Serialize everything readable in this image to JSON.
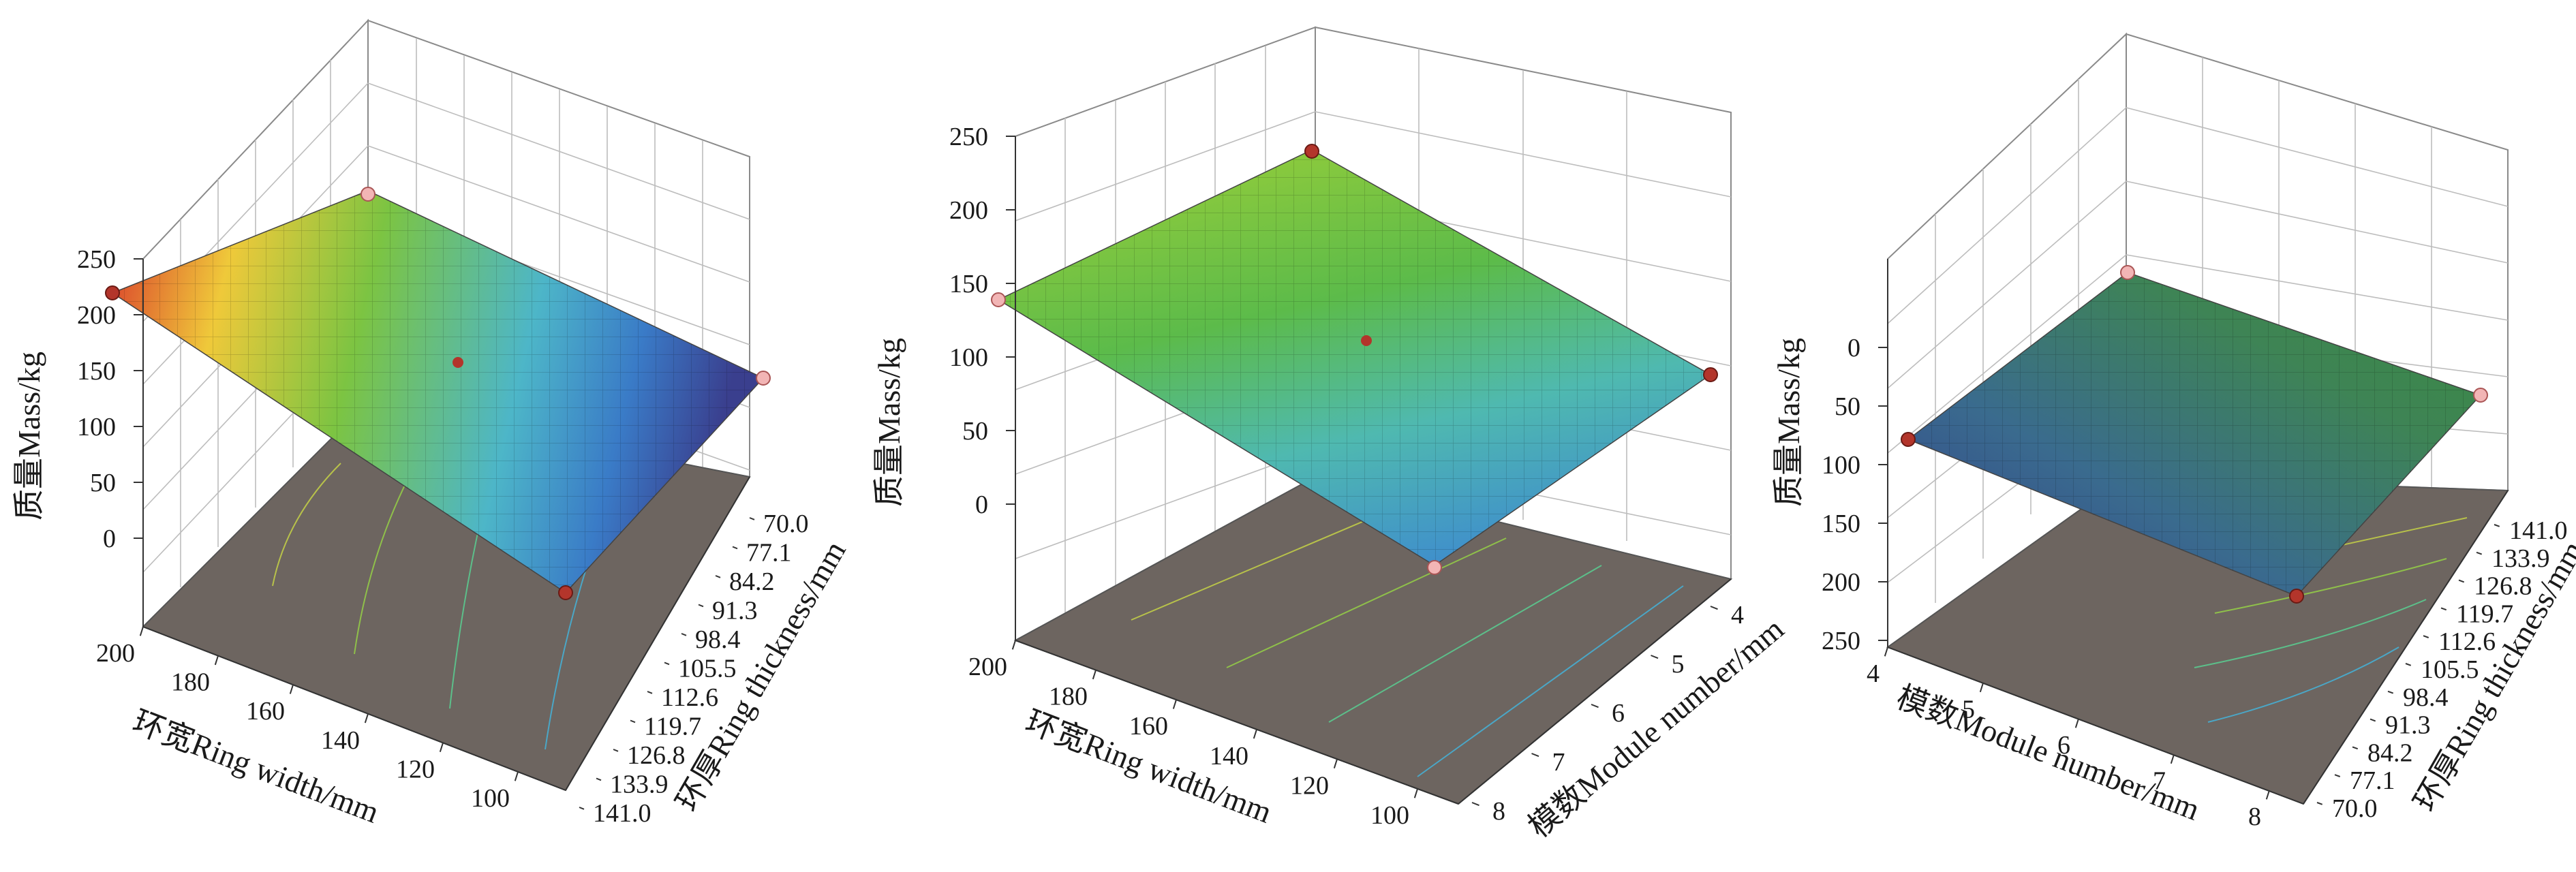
{
  "chart_data": [
    {
      "type": "surface",
      "title": "",
      "zlabel": "质量Mass/kg",
      "xlabel": "环宽Ring width/mm",
      "ylabel": "环厚Ring thickness/mm",
      "zticks": [
        "250",
        "200",
        "150",
        "100",
        "50",
        "0"
      ],
      "xticks": [
        "200",
        "180",
        "160",
        "140",
        "120",
        "100"
      ],
      "yticks": [
        "70.0",
        "77.1",
        "84.2",
        "91.3",
        "98.4",
        "105.5",
        "112.6",
        "119.7",
        "126.8",
        "133.9",
        "141.0"
      ],
      "corner_values": {
        "x200_y70.0": 195,
        "x100_y70.0": 100,
        "x200_y141.0": 150,
        "x100_y141.0": 60
      },
      "zlim": [
        0,
        250
      ]
    },
    {
      "type": "surface",
      "title": "",
      "zlabel": "质量Mass/kg",
      "xlabel": "环宽Ring width/mm",
      "ylabel": "模数Module number/mm",
      "zticks": [
        "250",
        "200",
        "150",
        "100",
        "50",
        "0"
      ],
      "xticks": [
        "200",
        "180",
        "160",
        "140",
        "120",
        "100"
      ],
      "yticks": [
        "4",
        "5",
        "6",
        "7",
        "8"
      ],
      "corner_values": {
        "x200_y4": 205,
        "x100_y4": 85,
        "x200_y8": 140,
        "x100_y8": 50
      },
      "zlim": [
        0,
        250
      ]
    },
    {
      "type": "surface",
      "title": "",
      "zlabel": "质量Mass/kg",
      "xlabel": "模数Module number/mm",
      "ylabel": "环厚Ring thickness/mm",
      "zticks": [
        "0",
        "50",
        "100",
        "150",
        "200",
        "250"
      ],
      "xticks": [
        "4",
        "5",
        "6",
        "7",
        "8"
      ],
      "yticks": [
        "141.0",
        "133.9",
        "126.8",
        "119.7",
        "112.6",
        "105.5",
        "98.4",
        "91.3",
        "84.2",
        "77.1",
        "70.0"
      ],
      "corner_values": {
        "x4_y141.0": 95,
        "x8_y141.0": 100,
        "x4_y70.0": 100,
        "x8_y70.0": 210
      },
      "zlim": [
        0,
        250
      ]
    }
  ]
}
